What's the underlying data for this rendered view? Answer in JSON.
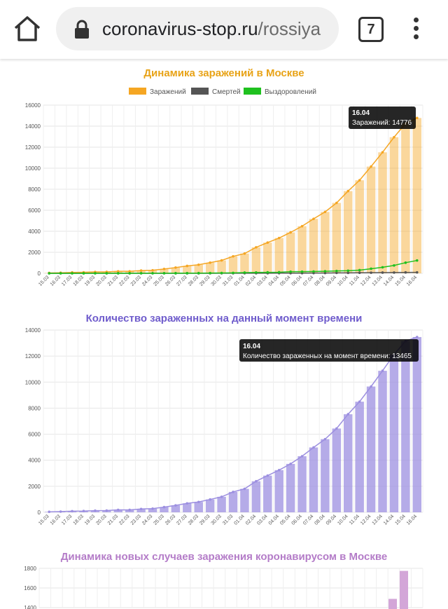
{
  "browser": {
    "url_domain": "coronavirus-stop.ru",
    "url_path": "/rossiya",
    "tab_count": "7"
  },
  "chart_data": [
    {
      "type": "bar",
      "title": "Динамика заражений в Москве",
      "categories": [
        "15.03",
        "16.03",
        "17.03",
        "18.03",
        "19.03",
        "20.03",
        "21.03",
        "22.03",
        "23.03",
        "24.03",
        "25.03",
        "26.03",
        "27.03",
        "28.03",
        "29.03",
        "30.03",
        "31.03",
        "01.04",
        "02.04",
        "03.04",
        "04.04",
        "05.04",
        "06.04",
        "07.04",
        "08.04",
        "09.04",
        "10.04",
        "11.04",
        "12.04",
        "13.04",
        "14.04",
        "15.04",
        "16.04"
      ],
      "series": [
        {
          "name": "Заражений",
          "color": "#f5a623",
          "values": [
            35,
            53,
            86,
            98,
            131,
            137,
            191,
            191,
            262,
            290,
            410,
            546,
            703,
            817,
            1014,
            1226,
            1613,
            1880,
            2475,
            2923,
            3357,
            3893,
            4484,
            5181,
            5841,
            6698,
            7822,
            8852,
            10158,
            11513,
            12948,
            14252,
            14776
          ]
        },
        {
          "name": "Смертей",
          "color": "#555555",
          "values": [
            0,
            0,
            0,
            0,
            0,
            0,
            0,
            0,
            1,
            1,
            1,
            2,
            3,
            3,
            4,
            5,
            6,
            7,
            9,
            11,
            14,
            15,
            18,
            24,
            29,
            38,
            42,
            53,
            58,
            68,
            71,
            86,
            90
          ]
        },
        {
          "name": "Выздоровлений",
          "color": "#1fc11f",
          "values": [
            0,
            0,
            0,
            3,
            5,
            5,
            5,
            8,
            8,
            9,
            9,
            12,
            14,
            20,
            24,
            31,
            41,
            70,
            80,
            93,
            103,
            158,
            158,
            175,
            193,
            223,
            246,
            301,
            435,
            573,
            749,
            1012,
            1221
          ]
        }
      ],
      "ylim": [
        0,
        16000
      ],
      "yticks": [
        "0",
        "2000",
        "4000",
        "6000",
        "8000",
        "10000",
        "12000",
        "14000",
        "16000"
      ],
      "legend": "top",
      "tooltip": {
        "title": "16.04",
        "text": "Заражений: 14776"
      }
    },
    {
      "type": "bar",
      "title": "Количество зараженных на данный момент времени",
      "categories": [
        "15.03",
        "16.03",
        "17.03",
        "18.03",
        "19.03",
        "20.03",
        "21.03",
        "22.03",
        "23.03",
        "24.03",
        "25.03",
        "26.03",
        "27.03",
        "28.03",
        "29.03",
        "30.03",
        "31.03",
        "01.04",
        "02.04",
        "03.04",
        "04.04",
        "05.04",
        "06.04",
        "07.04",
        "08.04",
        "09.04",
        "10.04",
        "11.04",
        "12.04",
        "13.04",
        "14.04",
        "15.04",
        "16.04"
      ],
      "series": [
        {
          "name": "Количество зараженных на момент времени",
          "color": "#9c8fe0",
          "values": [
            35,
            53,
            86,
            95,
            126,
            132,
            186,
            183,
            253,
            280,
            400,
            532,
            686,
            794,
            986,
            1190,
            1566,
            1803,
            2386,
            2819,
            3240,
            3720,
            4308,
            4982,
            5619,
            6437,
            7534,
            8498,
            9665,
            10872,
            12128,
            13154,
            13465
          ]
        }
      ],
      "ylim": [
        0,
        14000
      ],
      "yticks": [
        "0",
        "2000",
        "4000",
        "6000",
        "8000",
        "10000",
        "12000",
        "14000"
      ],
      "tooltip": {
        "title": "16.04",
        "text": "Количество зараженных на момент времени: 13465"
      }
    },
    {
      "type": "bar",
      "title": "Динамика новых случаев заражения коронавирусом в Москве",
      "series": [
        {
          "name": "",
          "color": "#d3a6d8",
          "values": [
            1489,
            1774
          ]
        }
      ],
      "ylim": [
        1400,
        1800
      ],
      "yticks": [
        "1400",
        "1600",
        "1800"
      ]
    }
  ]
}
